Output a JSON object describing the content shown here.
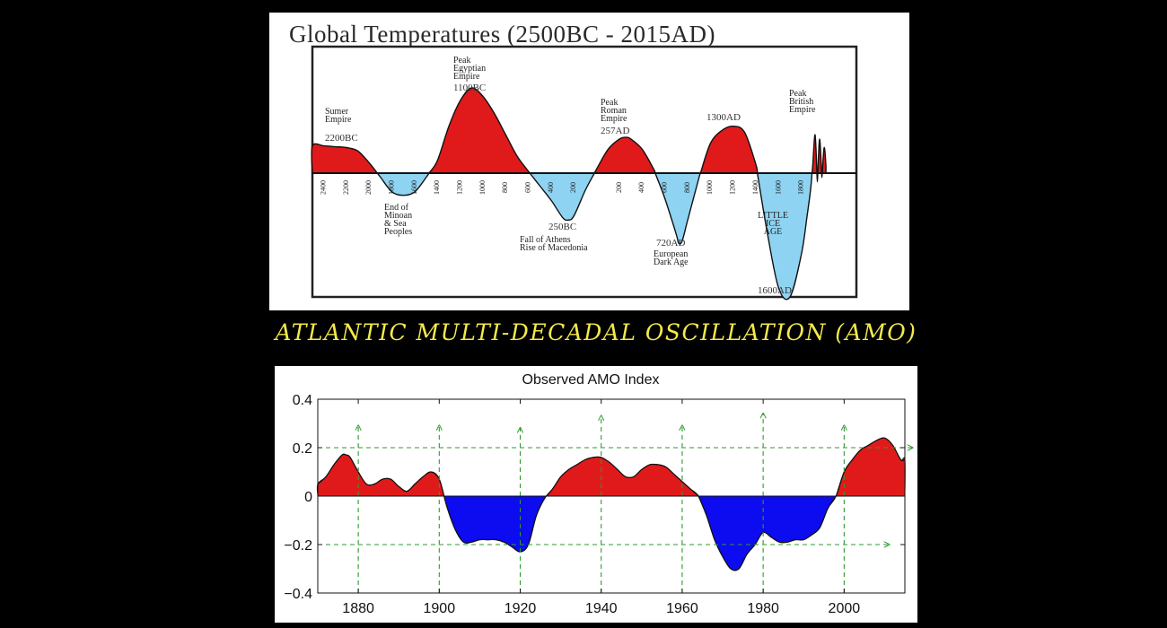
{
  "banner": "ATLANTIC MULTI-DECADAL OSCILLATION (AMO)",
  "colors": {
    "warm": "#e01a1a",
    "cool_top": "#8ed3f2",
    "cool_bottom": "#0d0bf0",
    "arrows": "#2f9a2f",
    "banner": "#f3ea4a"
  },
  "chart_data": [
    {
      "type": "area",
      "title": "Global Temperatures (2500BC - 2015AD)",
      "x_ticks": [
        "2400",
        "2200",
        "2000",
        "1800",
        "1600",
        "1400",
        "1200",
        "1000",
        "800",
        "600",
        "400",
        "200",
        "200",
        "400",
        "600",
        "800",
        "1000",
        "1200",
        "1400",
        "1600",
        "1800"
      ],
      "x_unit": "year (BC before zero crossing, AD after)",
      "grid": false,
      "y_axis_labels": false,
      "series_points": {
        "x": [
          -2500,
          -2400,
          -2300,
          -2200,
          -2100,
          -2000,
          -1900,
          -1800,
          -1700,
          -1600,
          -1500,
          -1400,
          -1300,
          -1200,
          -1100,
          -1000,
          -900,
          -800,
          -700,
          -600,
          -500,
          -400,
          -300,
          -250,
          -200,
          -100,
          0,
          100,
          200,
          257,
          300,
          400,
          500,
          600,
          700,
          720,
          750,
          800,
          900,
          1000,
          1100,
          1200,
          1300,
          1400,
          1500,
          1600,
          1700,
          1800,
          1850,
          1880,
          1900,
          1920,
          1940,
          1960,
          1980,
          2000,
          2015
        ],
        "y": [
          0.32,
          0.32,
          0.31,
          0.3,
          0.26,
          0.12,
          -0.05,
          -0.22,
          -0.26,
          -0.22,
          -0.05,
          0.15,
          0.55,
          0.85,
          1.0,
          0.9,
          0.7,
          0.45,
          0.2,
          0.02,
          -0.15,
          -0.32,
          -0.52,
          -0.55,
          -0.5,
          -0.2,
          0.05,
          0.28,
          0.4,
          0.42,
          0.4,
          0.28,
          0.05,
          -0.3,
          -0.72,
          -0.82,
          -0.8,
          -0.55,
          -0.05,
          0.35,
          0.5,
          0.55,
          0.48,
          0.1,
          -0.7,
          -1.35,
          -1.45,
          -0.95,
          -0.5,
          -0.2,
          0.1,
          0.45,
          -0.1,
          0.4,
          -0.05,
          0.3,
          0.1
        ]
      },
      "annotations": [
        {
          "text": "Sumer Empire",
          "date": "2200BC"
        },
        {
          "text": "Peak Egyptian Empire",
          "date": "1100BC"
        },
        {
          "text": "End of Minoan & Sea Peoples",
          "date": ""
        },
        {
          "text": "Fall of Athens Rise of Macedonia",
          "date": "250BC"
        },
        {
          "text": "Peak Roman Empire",
          "date": "257AD"
        },
        {
          "text": "European Dark Age",
          "date": "720AD"
        },
        {
          "text": "",
          "date": "1300AD"
        },
        {
          "text": "LITTLE ICE AGE",
          "date": "1600AD"
        },
        {
          "text": "Peak British Empire",
          "date": ""
        }
      ]
    },
    {
      "type": "area",
      "title": "Observed AMO Index",
      "xlabel": "",
      "ylabel": "",
      "xlim": [
        1870,
        2015
      ],
      "ylim": [
        -0.4,
        0.4
      ],
      "x_ticks": [
        1880,
        1900,
        1920,
        1940,
        1960,
        1980,
        2000
      ],
      "y_ticks": [
        -0.4,
        -0.2,
        0,
        0.2,
        0.4
      ],
      "y_tick_labels": [
        "−0.4",
        "−0.2",
        "0",
        "0.2",
        "0.4"
      ],
      "x": [
        1870,
        1872,
        1874,
        1876,
        1877,
        1878,
        1880,
        1882,
        1884,
        1886,
        1888,
        1890,
        1892,
        1894,
        1896,
        1898,
        1900,
        1902,
        1904,
        1906,
        1908,
        1910,
        1912,
        1914,
        1916,
        1918,
        1920,
        1922,
        1924,
        1926,
        1928,
        1930,
        1932,
        1934,
        1936,
        1938,
        1940,
        1942,
        1944,
        1946,
        1948,
        1950,
        1952,
        1954,
        1956,
        1958,
        1960,
        1962,
        1964,
        1966,
        1968,
        1970,
        1972,
        1974,
        1976,
        1978,
        1980,
        1982,
        1984,
        1986,
        1988,
        1990,
        1992,
        1994,
        1996,
        1998,
        2000,
        2002,
        2004,
        2006,
        2008,
        2010,
        2012,
        2014,
        2015
      ],
      "y": [
        0.05,
        0.08,
        0.13,
        0.17,
        0.17,
        0.16,
        0.1,
        0.05,
        0.05,
        0.07,
        0.07,
        0.04,
        0.02,
        0.05,
        0.08,
        0.1,
        0.07,
        -0.05,
        -0.14,
        -0.19,
        -0.19,
        -0.18,
        -0.18,
        -0.18,
        -0.19,
        -0.21,
        -0.23,
        -0.2,
        -0.08,
        -0.01,
        0.03,
        0.08,
        0.11,
        0.13,
        0.15,
        0.16,
        0.16,
        0.14,
        0.11,
        0.08,
        0.08,
        0.11,
        0.13,
        0.13,
        0.12,
        0.09,
        0.06,
        0.03,
        0,
        -0.08,
        -0.18,
        -0.25,
        -0.3,
        -0.3,
        -0.24,
        -0.2,
        -0.15,
        -0.17,
        -0.19,
        -0.19,
        -0.18,
        -0.18,
        -0.16,
        -0.13,
        -0.05,
        0,
        0.1,
        0.15,
        0.19,
        0.21,
        0.23,
        0.24,
        0.21,
        0.15,
        0.15
      ],
      "arrow_years": [
        1880,
        1900,
        1920,
        1940,
        1960,
        1980,
        2000
      ],
      "arrow_levels": [
        0.2,
        -0.2
      ],
      "grid": false
    }
  ]
}
